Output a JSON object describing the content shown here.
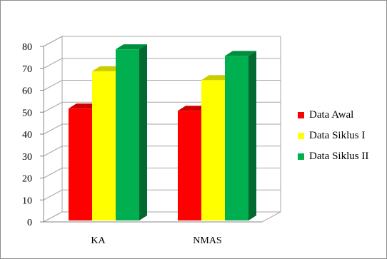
{
  "chart_data": {
    "type": "bar",
    "categories": [
      "KA",
      "NMAS"
    ],
    "series": [
      {
        "name": "Data Awal",
        "values": [
          51,
          50
        ],
        "color": "#ff0000"
      },
      {
        "name": "Data Siklus I",
        "values": [
          68,
          64
        ],
        "color": "#ffff00"
      },
      {
        "name": "Data Siklus II",
        "values": [
          78,
          75
        ],
        "color": "#00b050"
      }
    ],
    "ylim": [
      0,
      80
    ],
    "yticks": [
      "0",
      "10",
      "20",
      "30",
      "40",
      "50",
      "60",
      "70",
      "80"
    ],
    "grid": true,
    "legend": "right",
    "title": "",
    "xlabel": "",
    "ylabel": ""
  }
}
